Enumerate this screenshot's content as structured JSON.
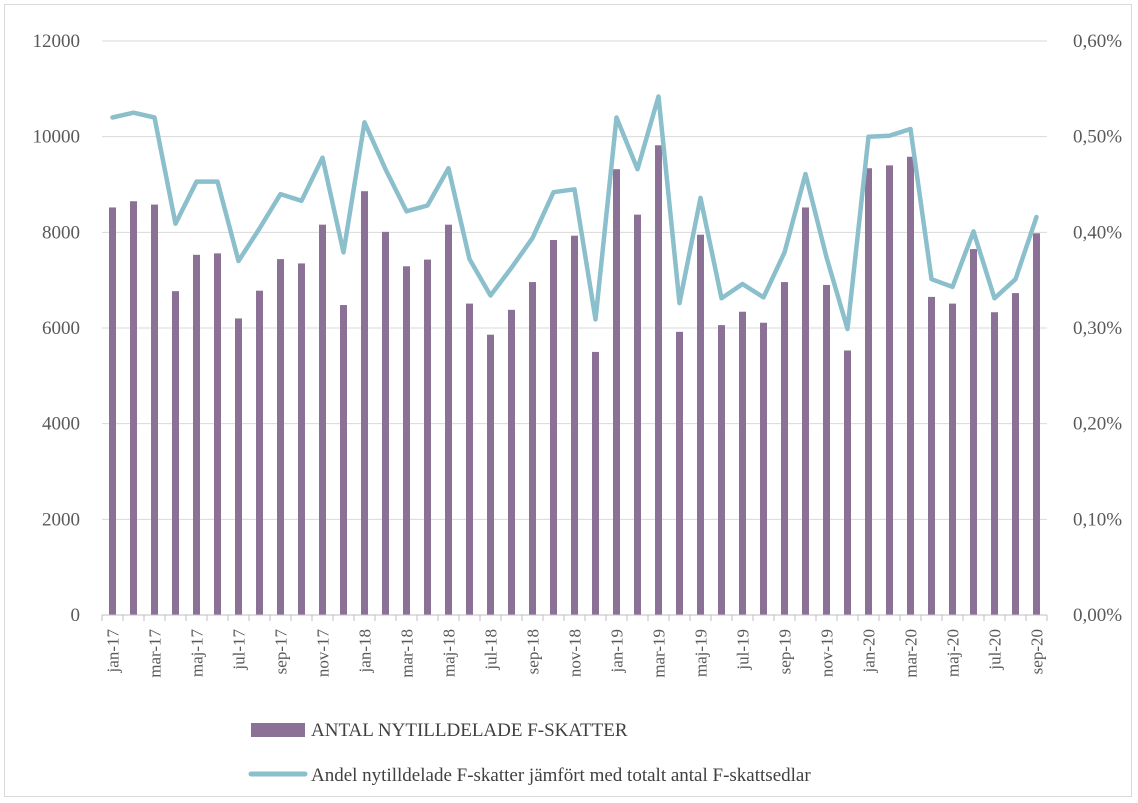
{
  "chart_data": {
    "type": "bar",
    "categories": [
      "jan-17",
      "feb-17",
      "mar-17",
      "apr-17",
      "maj-17",
      "jun-17",
      "jul-17",
      "aug-17",
      "sep-17",
      "okt-17",
      "nov-17",
      "dec-17",
      "jan-18",
      "feb-18",
      "mar-18",
      "apr-18",
      "maj-18",
      "jun-18",
      "jul-18",
      "aug-18",
      "sep-18",
      "okt-18",
      "nov-18",
      "dec-18",
      "jan-19",
      "feb-19",
      "mar-19",
      "apr-19",
      "maj-19",
      "jun-19",
      "jul-19",
      "aug-19",
      "sep-19",
      "okt-19",
      "nov-19",
      "dec-19",
      "jan-20",
      "feb-20",
      "mar-20",
      "apr-20",
      "maj-20",
      "jun-20",
      "jul-20",
      "aug-20",
      "sep-20"
    ],
    "shown_tick_labels": [
      "jan-17",
      "mar-17",
      "maj-17",
      "jul-17",
      "sep-17",
      "nov-17",
      "jan-18",
      "mar-18",
      "maj-18",
      "jul-18",
      "sep-18",
      "nov-18",
      "jan-19",
      "mar-19",
      "maj-19",
      "jul-19",
      "sep-19",
      "nov-19",
      "jan-20",
      "mar-20",
      "maj-20",
      "jul-20",
      "sep-20"
    ],
    "series": [
      {
        "name": "ANTAL NYTILLDELADE F-SKATTER",
        "type": "bar",
        "axis": "left",
        "color": "#8b7196",
        "values": [
          8520,
          8650,
          8580,
          6770,
          7530,
          7560,
          6200,
          6780,
          7440,
          7350,
          8160,
          6480,
          8860,
          8010,
          7290,
          7430,
          8160,
          6510,
          5860,
          6380,
          6960,
          7840,
          7930,
          5500,
          9320,
          8370,
          9820,
          5920,
          7950,
          6060,
          6340,
          6110,
          6960,
          8520,
          6900,
          5530,
          9340,
          9400,
          9580,
          6650,
          6510,
          7650,
          6330,
          6730,
          7980
        ]
      },
      {
        "name": "Andel nytilldelade F-skatter jämfört med totalt antal F-skattsedlar",
        "type": "line",
        "axis": "right",
        "color": "#8bbfcb",
        "values": [
          0.52,
          0.525,
          0.52,
          0.409,
          0.453,
          0.453,
          0.37,
          0.404,
          0.44,
          0.433,
          0.478,
          0.379,
          0.515,
          0.466,
          0.422,
          0.428,
          0.467,
          0.372,
          0.334,
          0.363,
          0.394,
          0.442,
          0.445,
          0.309,
          0.52,
          0.466,
          0.542,
          0.326,
          0.436,
          0.331,
          0.346,
          0.332,
          0.379,
          0.461,
          0.374,
          0.299,
          0.5,
          0.501,
          0.508,
          0.351,
          0.343,
          0.401,
          0.331,
          0.351,
          0.416
        ]
      }
    ],
    "ylim_left": [
      0,
      12000
    ],
    "yticks_left": [
      "0",
      "2000",
      "4000",
      "6000",
      "8000",
      "10000",
      "12000"
    ],
    "ylim_right": [
      0,
      0.6
    ],
    "yticks_right": [
      "0,00%",
      "0,10%",
      "0,20%",
      "0,30%",
      "0,40%",
      "0,50%",
      "0,60%"
    ],
    "grid": true,
    "legend_position": "bottom"
  },
  "legend": {
    "bar_label": "ANTAL NYTILLDELADE F-SKATTER",
    "line_label": "Andel nytilldelade F-skatter jämfört med totalt antal F-skattsedlar"
  }
}
